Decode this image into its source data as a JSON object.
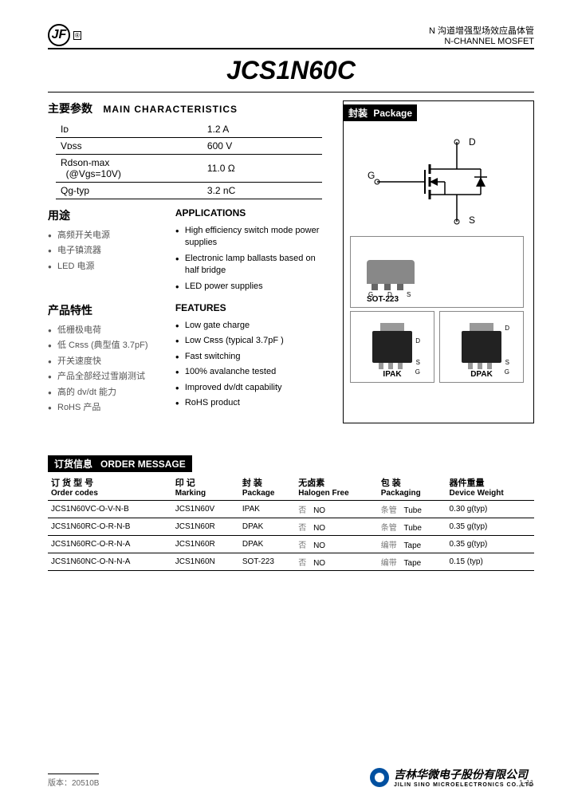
{
  "header": {
    "logo_text": "JF",
    "reg": "®",
    "cn": "N 沟道增强型场效应晶体管",
    "en": "N-CHANNEL MOSFET"
  },
  "part_number": "JCS1N60C",
  "main_char": {
    "title_cn": "主要参数",
    "title_en": "MAIN  CHARACTERISTICS",
    "rows": [
      {
        "p": "Iᴅ",
        "v": "1.2 A"
      },
      {
        "p": "Vᴅss",
        "v": "600 V"
      },
      {
        "p": "Rdson-max\n  (@Vgs=10V)",
        "v": "11.0 Ω"
      },
      {
        "p": "Qg-typ",
        "v": "3.2 nC"
      }
    ]
  },
  "applications": {
    "cn_title": "用途",
    "en_title": "APPLICATIONS",
    "cn": [
      "高频开关电源",
      "电子镇流器",
      "LED 电源"
    ],
    "en": [
      "High efficiency switch mode power supplies",
      "Electronic lamp ballasts based on half bridge",
      "LED power supplies"
    ]
  },
  "features": {
    "cn_title": "产品特性",
    "en_title": "FEATURES",
    "cn": [
      "低栅极电荷",
      "低 Cʀss (典型值 3.7pF)",
      "开关速度快",
      "产品全部经过雪崩测试",
      "高的 dv/dt 能力",
      "RoHS 产品"
    ],
    "en": [
      "Low gate charge",
      "Low Cʀss (typical 3.7pF )",
      "Fast switching",
      "100% avalanche tested",
      "Improved dv/dt capability",
      "RoHS product"
    ]
  },
  "package": {
    "title_cn": "封装",
    "title_en": "Package",
    "pins": {
      "d": "D",
      "g": "G",
      "s": "S"
    },
    "types": [
      "SOT-223",
      "IPAK",
      "DPAK"
    ]
  },
  "order": {
    "title_cn": "订货信息",
    "title_en": "ORDER MESSAGE",
    "columns": [
      {
        "cn": "订 货 型 号",
        "en": "Order codes"
      },
      {
        "cn": "印    记",
        "en": "Marking"
      },
      {
        "cn": "封    装",
        "en": "Package"
      },
      {
        "cn": "无卤素",
        "en": "Halogen Free"
      },
      {
        "cn": "包    装",
        "en": "Packaging"
      },
      {
        "cn": "器件重量",
        "en": "Device Weight"
      }
    ],
    "rows": [
      {
        "code": "JCS1N60VC-O-V-N-B",
        "mark": "JCS1N60V",
        "pkg": "IPAK",
        "hf_cn": "否",
        "hf_en": "NO",
        "pack_cn": "条管",
        "pack_en": "Tube",
        "wt": "0.30 g(typ)"
      },
      {
        "code": "JCS1N60RC-O-R-N-B",
        "mark": "JCS1N60R",
        "pkg": "DPAK",
        "hf_cn": "否",
        "hf_en": "NO",
        "pack_cn": "条管",
        "pack_en": "Tube",
        "wt": "0.35 g(typ)"
      },
      {
        "code": "JCS1N60RC-O-R-N-A",
        "mark": "JCS1N60R",
        "pkg": "DPAK",
        "hf_cn": "否",
        "hf_en": "NO",
        "pack_cn": "编带",
        "pack_en": "Tape",
        "wt": "0.35 g(typ)"
      },
      {
        "code": "JCS1N60NC-O-N-N-A",
        "mark": "JCS1N60N",
        "pkg": "SOT-223",
        "hf_cn": "否",
        "hf_en": "NO",
        "pack_cn": "编带",
        "pack_en": "Tape",
        "wt": "0.15 (typ)"
      }
    ]
  },
  "footer": {
    "version_label": "版本：",
    "version": "20510B",
    "company_cn": "吉林华微电子股份有限公司",
    "company_en": "JILIN SINO MICROELECTRONICS CO.,LTD",
    "page": "1-11"
  }
}
